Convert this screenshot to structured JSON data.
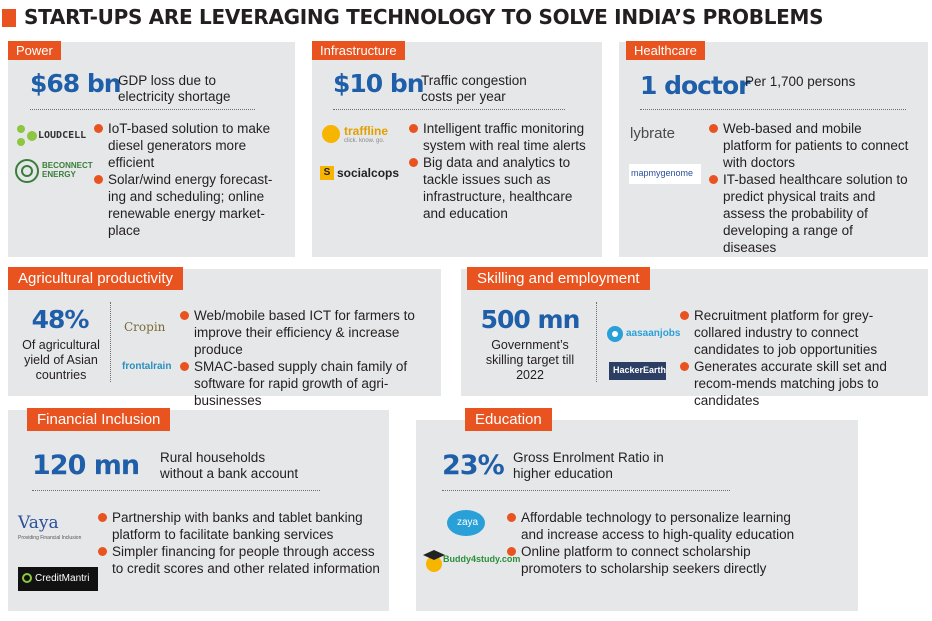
{
  "title": "START-UPS ARE LEVERAGING TECHNOLOGY TO SOLVE INDIA’S PROBLEMS",
  "colors": {
    "accent": "#e8531f",
    "stat": "#1f5ea8",
    "panel": "#e6e7e8"
  },
  "power": {
    "tag": "Power",
    "stat": "$68 bn",
    "desc": "GDP loss due to electricity shortage",
    "logos": [
      "LOUDCELL",
      "BECONNECT ENERGY"
    ],
    "bullets": [
      "IoT-based solution to make diesel generators more efficient",
      "Solar/wind energy forecast-ing and scheduling; online renewable energy market-place"
    ]
  },
  "infrastructure": {
    "tag": "Infrastructure",
    "stat": "$10 bn",
    "desc": "Traffic congestion costs per year",
    "logos": [
      "traffline",
      "click. know. go.",
      "socialcops"
    ],
    "bullets": [
      "Intelligent traffic monitoring system with real time alerts",
      "Big data and analytics to tackle issues such as infrastructure, healthcare and education"
    ]
  },
  "healthcare": {
    "tag": "Healthcare",
    "stat": "1 doctor",
    "desc": "Per 1,700 persons",
    "logos": [
      "lybrate",
      "mapmygenome"
    ],
    "bullets": [
      "Web-based and mobile platform for patients to connect with doctors",
      "IT-based healthcare solution to predict physical traits and assess the probability of developing a range of diseases"
    ]
  },
  "agriculture": {
    "tag": "Agricultural productivity",
    "stat": "48%",
    "desc": "Of agricultural yield of Asian countries",
    "logos": [
      "Cropin",
      "frontalrain"
    ],
    "bullets": [
      "Web/mobile based ICT for farmers to improve their efficiency & increase produce",
      "SMAC-based supply chain family of software for rapid growth of agri-businesses"
    ]
  },
  "skilling": {
    "tag": "Skilling and employment",
    "stat": "500 mn",
    "desc": "Government’s skilling target till 2022",
    "logos": [
      "aasaanjobs",
      "HackerEarth"
    ],
    "bullets": [
      "Recruitment platform for grey-collared industry to connect candidates to job opportunities",
      "Generates accurate skill set and recom-mends matching jobs to candidates"
    ]
  },
  "financial": {
    "tag": "Financial Inclusion",
    "stat": "120 mn",
    "desc": "Rural households without a bank account",
    "logos": [
      "Vaya",
      "Providing Financial Inclusion",
      "CreditMantri"
    ],
    "bullets": [
      "Partnership with banks and tablet banking platform to facilitate banking services",
      "Simpler financing for people through access to credit scores and other related information"
    ]
  },
  "education": {
    "tag": "Education",
    "stat": "23%",
    "desc": "Gross Enrolment Ratio in higher education",
    "logos": [
      "zaya",
      "Buddy4study.com"
    ],
    "bullets": [
      "Affordable technology to personalize learning and increase access to high-quality education",
      "Online platform to connect scholarship promoters to scholarship seekers directly"
    ]
  }
}
